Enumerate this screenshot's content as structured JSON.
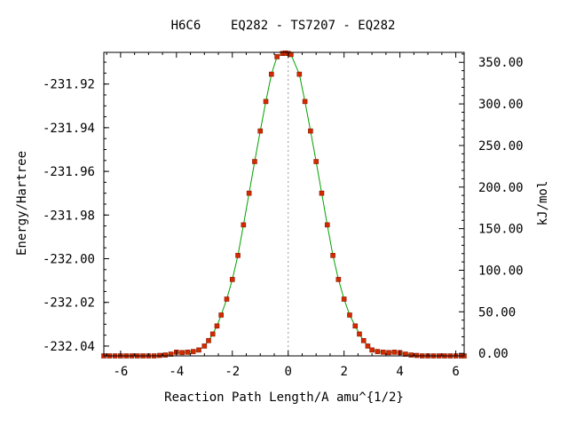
{
  "chart_data": {
    "type": "line",
    "title": "H6C6    EQ282 - TS7207 - EQ282",
    "xlabel": "Reaction Path Length/A amu^{1/2}",
    "ylabel_left": "Energy/Hartree",
    "ylabel_right": "kJ/mol",
    "xlim": [
      -6.6,
      6.3
    ],
    "ylim_left": [
      -232.0445,
      -231.9055
    ],
    "ylim_right": [
      -3.0,
      362.0
    ],
    "x_ticks": [
      -6,
      -4,
      -2,
      0,
      2,
      4,
      6
    ],
    "x_tick_labels": [
      "-6",
      "-4",
      "-2",
      "0",
      "2",
      "4",
      "6"
    ],
    "y_left_ticks": [
      -231.92,
      -231.94,
      -231.96,
      -231.98,
      -232.0,
      -232.02,
      -232.04
    ],
    "y_left_tick_labels": [
      "-231.92",
      "-231.94",
      "-231.96",
      "-231.98",
      "-232.00",
      "-232.02",
      "-232.04"
    ],
    "y_right_ticks": [
      0,
      50,
      100,
      150,
      200,
      250,
      300,
      350
    ],
    "y_right_tick_labels": [
      "0.00",
      "50.00",
      "100.00",
      "150.00",
      "200.00",
      "250.00",
      "300.00",
      "350.00"
    ],
    "ts_x": 0.0,
    "series": [
      {
        "color": "#d42a00",
        "line_color": "#00a000",
        "x": [
          -6.6,
          -6.4,
          -6.2,
          -6.0,
          -5.8,
          -5.6,
          -5.4,
          -5.2,
          -5.0,
          -4.8,
          -4.6,
          -4.4,
          -4.2,
          -4.0,
          -3.8,
          -3.6,
          -3.4,
          -3.2,
          -3.0,
          -2.85,
          -2.7,
          -2.55,
          -2.4,
          -2.2,
          -2.0,
          -1.8,
          -1.6,
          -1.4,
          -1.2,
          -1.0,
          -0.8,
          -0.6,
          -0.4,
          -0.2,
          -0.1,
          0.0,
          0.1,
          0.4,
          0.6,
          0.8,
          1.0,
          1.2,
          1.4,
          1.6,
          1.8,
          2.0,
          2.2,
          2.4,
          2.55,
          2.7,
          2.85,
          3.0,
          3.2,
          3.4,
          3.6,
          3.8,
          4.0,
          4.2,
          4.4,
          4.6,
          4.8,
          5.0,
          5.2,
          5.4,
          5.6,
          5.8,
          6.0,
          6.2,
          6.3
        ],
        "y": [
          -232.0445,
          -232.0445,
          -232.0445,
          -232.0445,
          -232.0445,
          -232.0445,
          -232.0445,
          -232.0445,
          -232.0445,
          -232.0445,
          -232.0443,
          -232.0441,
          -232.0437,
          -232.0428,
          -232.043,
          -232.0428,
          -232.0425,
          -232.0418,
          -232.04,
          -232.0375,
          -232.0345,
          -232.0308,
          -232.0258,
          -232.0185,
          -232.0095,
          -231.9985,
          -231.9845,
          -231.97,
          -231.9555,
          -231.9415,
          -231.928,
          -231.9155,
          -231.9075,
          -231.906,
          -231.9058,
          -231.906,
          -231.9065,
          -231.9155,
          -231.928,
          -231.9415,
          -231.9555,
          -231.97,
          -231.9845,
          -231.9985,
          -232.0095,
          -232.0185,
          -232.0258,
          -232.0308,
          -232.0345,
          -232.0375,
          -232.04,
          -232.0418,
          -232.0425,
          -232.0428,
          -232.043,
          -232.0428,
          -232.043,
          -232.0437,
          -232.0441,
          -232.0443,
          -232.0445,
          -232.0445,
          -232.0445,
          -232.0445,
          -232.0445,
          -232.0445,
          -232.0445,
          -232.0445,
          -232.0445
        ]
      }
    ]
  }
}
